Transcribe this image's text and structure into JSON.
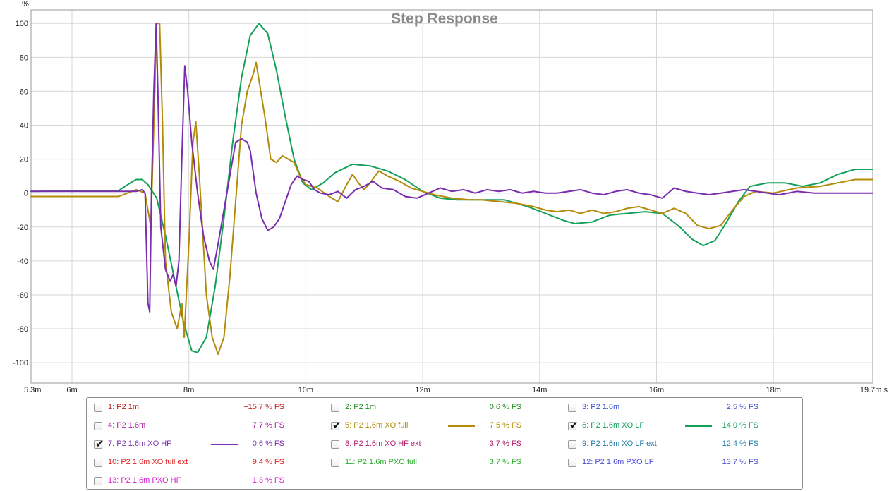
{
  "chart_data": {
    "type": "line",
    "title": "Step Response",
    "xlabel": "s",
    "ylabel": "%",
    "xlim": [
      5.3,
      19.7
    ],
    "ylim": [
      -112,
      108
    ],
    "x_ticks": [
      {
        "v": 5.3,
        "label": "5.3m"
      },
      {
        "v": 6,
        "label": "6m"
      },
      {
        "v": 8,
        "label": "8m"
      },
      {
        "v": 10,
        "label": "10m"
      },
      {
        "v": 12,
        "label": "12m"
      },
      {
        "v": 14,
        "label": "14m"
      },
      {
        "v": 16,
        "label": "16m"
      },
      {
        "v": 18,
        "label": "18m"
      },
      {
        "v": 19.7,
        "label": "19.7m s"
      }
    ],
    "y_ticks": [
      100,
      80,
      60,
      40,
      20,
      0,
      -20,
      -40,
      -60,
      -80,
      -100
    ],
    "grid": true,
    "series": [
      {
        "name": "6: P2 1.6m XO LF",
        "color": "#13a05a",
        "points": [
          [
            5.3,
            1
          ],
          [
            6.8,
            1.5
          ],
          [
            7.0,
            6
          ],
          [
            7.1,
            8
          ],
          [
            7.2,
            8
          ],
          [
            7.3,
            5
          ],
          [
            7.45,
            -3
          ],
          [
            7.6,
            -25
          ],
          [
            7.75,
            -50
          ],
          [
            7.9,
            -75
          ],
          [
            8.05,
            -93
          ],
          [
            8.15,
            -94
          ],
          [
            8.3,
            -85
          ],
          [
            8.45,
            -55
          ],
          [
            8.6,
            -15
          ],
          [
            8.75,
            30
          ],
          [
            8.9,
            68
          ],
          [
            9.05,
            93
          ],
          [
            9.2,
            100
          ],
          [
            9.35,
            94
          ],
          [
            9.5,
            72
          ],
          [
            9.65,
            45
          ],
          [
            9.8,
            20
          ],
          [
            9.95,
            6
          ],
          [
            10.1,
            2
          ],
          [
            10.3,
            6
          ],
          [
            10.5,
            12
          ],
          [
            10.8,
            17
          ],
          [
            11.1,
            16
          ],
          [
            11.4,
            13
          ],
          [
            11.7,
            8
          ],
          [
            12.0,
            1
          ],
          [
            12.3,
            -3
          ],
          [
            12.6,
            -4
          ],
          [
            13.0,
            -4
          ],
          [
            13.4,
            -4
          ],
          [
            13.8,
            -8
          ],
          [
            14.1,
            -12
          ],
          [
            14.4,
            -16
          ],
          [
            14.6,
            -18
          ],
          [
            14.9,
            -17
          ],
          [
            15.2,
            -13
          ],
          [
            15.5,
            -12
          ],
          [
            15.8,
            -11
          ],
          [
            16.1,
            -12
          ],
          [
            16.4,
            -20
          ],
          [
            16.6,
            -27
          ],
          [
            16.8,
            -31
          ],
          [
            17.0,
            -28
          ],
          [
            17.2,
            -17
          ],
          [
            17.4,
            -5
          ],
          [
            17.6,
            4
          ],
          [
            17.9,
            6
          ],
          [
            18.2,
            6
          ],
          [
            18.5,
            4
          ],
          [
            18.8,
            6
          ],
          [
            19.1,
            11
          ],
          [
            19.4,
            14
          ],
          [
            19.7,
            14
          ]
        ]
      },
      {
        "name": "5: P2 1.6m XO full",
        "color": "#b38b08",
        "points": [
          [
            5.3,
            -2
          ],
          [
            6.8,
            -2
          ],
          [
            7.1,
            2
          ],
          [
            7.25,
            0
          ],
          [
            7.35,
            -20
          ],
          [
            7.4,
            40
          ],
          [
            7.45,
            100
          ],
          [
            7.5,
            100
          ],
          [
            7.55,
            40
          ],
          [
            7.6,
            -40
          ],
          [
            7.7,
            -70
          ],
          [
            7.8,
            -80
          ],
          [
            7.88,
            -65
          ],
          [
            7.92,
            -85
          ],
          [
            8.0,
            -30
          ],
          [
            8.07,
            30
          ],
          [
            8.12,
            42
          ],
          [
            8.18,
            10
          ],
          [
            8.3,
            -60
          ],
          [
            8.4,
            -85
          ],
          [
            8.5,
            -95
          ],
          [
            8.6,
            -85
          ],
          [
            8.7,
            -50
          ],
          [
            8.8,
            -5
          ],
          [
            8.9,
            40
          ],
          [
            9.0,
            60
          ],
          [
            9.1,
            70
          ],
          [
            9.15,
            77
          ],
          [
            9.22,
            62
          ],
          [
            9.3,
            45
          ],
          [
            9.4,
            20
          ],
          [
            9.5,
            18
          ],
          [
            9.6,
            22
          ],
          [
            9.7,
            20
          ],
          [
            9.8,
            18
          ],
          [
            9.9,
            10
          ],
          [
            10.0,
            5
          ],
          [
            10.2,
            3
          ],
          [
            10.4,
            -2
          ],
          [
            10.55,
            -5
          ],
          [
            10.7,
            5
          ],
          [
            10.8,
            11
          ],
          [
            10.9,
            6
          ],
          [
            11.0,
            2
          ],
          [
            11.1,
            6
          ],
          [
            11.25,
            13
          ],
          [
            11.4,
            10
          ],
          [
            11.6,
            7
          ],
          [
            11.8,
            3
          ],
          [
            12.0,
            1
          ],
          [
            12.2,
            -1
          ],
          [
            12.5,
            -3
          ],
          [
            12.8,
            -4
          ],
          [
            13.0,
            -4
          ],
          [
            13.3,
            -5
          ],
          [
            13.6,
            -6
          ],
          [
            13.9,
            -8
          ],
          [
            14.1,
            -10
          ],
          [
            14.3,
            -11
          ],
          [
            14.5,
            -10
          ],
          [
            14.7,
            -12
          ],
          [
            14.9,
            -10
          ],
          [
            15.1,
            -12
          ],
          [
            15.3,
            -11
          ],
          [
            15.5,
            -9
          ],
          [
            15.7,
            -8
          ],
          [
            15.9,
            -10
          ],
          [
            16.1,
            -12
          ],
          [
            16.3,
            -9
          ],
          [
            16.5,
            -12
          ],
          [
            16.7,
            -19
          ],
          [
            16.9,
            -21
          ],
          [
            17.1,
            -19
          ],
          [
            17.3,
            -10
          ],
          [
            17.5,
            -2
          ],
          [
            17.7,
            1
          ],
          [
            18.0,
            0
          ],
          [
            18.4,
            3
          ],
          [
            18.8,
            4
          ],
          [
            19.1,
            6
          ],
          [
            19.4,
            8
          ],
          [
            19.7,
            8
          ]
        ]
      },
      {
        "name": "7: P2 1.6m XO HF",
        "color": "#7a2dae",
        "points": [
          [
            5.3,
            1
          ],
          [
            6.8,
            1
          ],
          [
            7.1,
            1
          ],
          [
            7.2,
            2
          ],
          [
            7.25,
            0
          ],
          [
            7.3,
            -65
          ],
          [
            7.33,
            -70
          ],
          [
            7.36,
            0
          ],
          [
            7.4,
            60
          ],
          [
            7.44,
            100
          ],
          [
            7.47,
            60
          ],
          [
            7.52,
            -20
          ],
          [
            7.6,
            -45
          ],
          [
            7.68,
            -52
          ],
          [
            7.73,
            -48
          ],
          [
            7.78,
            -55
          ],
          [
            7.83,
            -40
          ],
          [
            7.88,
            20
          ],
          [
            7.93,
            75
          ],
          [
            7.98,
            60
          ],
          [
            8.05,
            30
          ],
          [
            8.15,
            0
          ],
          [
            8.25,
            -25
          ],
          [
            8.35,
            -40
          ],
          [
            8.42,
            -45
          ],
          [
            8.5,
            -30
          ],
          [
            8.6,
            -10
          ],
          [
            8.7,
            10
          ],
          [
            8.8,
            30
          ],
          [
            8.9,
            32
          ],
          [
            9.0,
            30
          ],
          [
            9.05,
            25
          ],
          [
            9.15,
            0
          ],
          [
            9.25,
            -15
          ],
          [
            9.35,
            -22
          ],
          [
            9.45,
            -20
          ],
          [
            9.55,
            -15
          ],
          [
            9.65,
            -5
          ],
          [
            9.75,
            5
          ],
          [
            9.85,
            10
          ],
          [
            9.95,
            8
          ],
          [
            10.05,
            7
          ],
          [
            10.15,
            2
          ],
          [
            10.25,
            0
          ],
          [
            10.4,
            -1
          ],
          [
            10.55,
            1
          ],
          [
            10.7,
            -3
          ],
          [
            10.85,
            2
          ],
          [
            11.0,
            4
          ],
          [
            11.15,
            7
          ],
          [
            11.3,
            3
          ],
          [
            11.5,
            2
          ],
          [
            11.7,
            -2
          ],
          [
            11.9,
            -3
          ],
          [
            12.1,
            0
          ],
          [
            12.3,
            3
          ],
          [
            12.5,
            1
          ],
          [
            12.7,
            2
          ],
          [
            12.9,
            0
          ],
          [
            13.1,
            2
          ],
          [
            13.3,
            1
          ],
          [
            13.5,
            2
          ],
          [
            13.7,
            0
          ],
          [
            13.9,
            1
          ],
          [
            14.1,
            0
          ],
          [
            14.3,
            0
          ],
          [
            14.5,
            1
          ],
          [
            14.7,
            2
          ],
          [
            14.9,
            0
          ],
          [
            15.1,
            -1
          ],
          [
            15.3,
            1
          ],
          [
            15.5,
            2
          ],
          [
            15.7,
            0
          ],
          [
            15.9,
            -1
          ],
          [
            16.1,
            -3
          ],
          [
            16.3,
            3
          ],
          [
            16.5,
            1
          ],
          [
            16.7,
            0
          ],
          [
            16.9,
            -1
          ],
          [
            17.1,
            0
          ],
          [
            17.3,
            1
          ],
          [
            17.5,
            2
          ],
          [
            17.7,
            1
          ],
          [
            17.9,
            0
          ],
          [
            18.1,
            -1
          ],
          [
            18.4,
            1
          ],
          [
            18.7,
            0
          ],
          [
            19.0,
            0
          ],
          [
            19.3,
            0
          ],
          [
            19.7,
            0
          ]
        ]
      }
    ],
    "legend": [
      {
        "label": "1: P2 1m",
        "value": "−15.7 % FS",
        "color": "#c41a1a",
        "checked": false
      },
      {
        "label": "2: P2 1m",
        "value": "0.6 % FS",
        "color": "#1f8a1f",
        "checked": false
      },
      {
        "label": "3: P2 1.6m",
        "value": "2.5 % FS",
        "color": "#3a4fd6",
        "checked": false
      },
      {
        "label": "4: P2 1.6m",
        "value": "7.7 % FS",
        "color": "#b01aa6",
        "checked": false
      },
      {
        "label": "5: P2 1.6m XO full",
        "value": "7.5 % FS",
        "color": "#b38b08",
        "checked": true
      },
      {
        "label": "6: P2 1.6m XO LF",
        "value": "14.0 % FS",
        "color": "#13a05a",
        "checked": true
      },
      {
        "label": "7: P2 1.6m XO HF",
        "value": "0.6 % FS",
        "color": "#7a2dae",
        "checked": true
      },
      {
        "label": "8: P2 1.6m XO HF ext",
        "value": "3.7 % FS",
        "color": "#b0186a",
        "checked": false
      },
      {
        "label": "9: P2 1.6m XO LF ext",
        "value": "12.4 % FS",
        "color": "#1f78a6",
        "checked": false
      },
      {
        "label": "10: P2 1.6m XO full ext",
        "value": "9.4 % FS",
        "color": "#e01b1b",
        "checked": false
      },
      {
        "label": "11: P2 1.6m PXO full",
        "value": "3.7 % FS",
        "color": "#2aac2a",
        "checked": false
      },
      {
        "label": "12: P2 1.6m PXO LF",
        "value": "13.7 % FS",
        "color": "#4a4ad6",
        "checked": false
      },
      {
        "label": "13: P2 1.6m PXO HF",
        "value": "−1.3 % FS",
        "color": "#d61ad0",
        "checked": false
      }
    ]
  }
}
